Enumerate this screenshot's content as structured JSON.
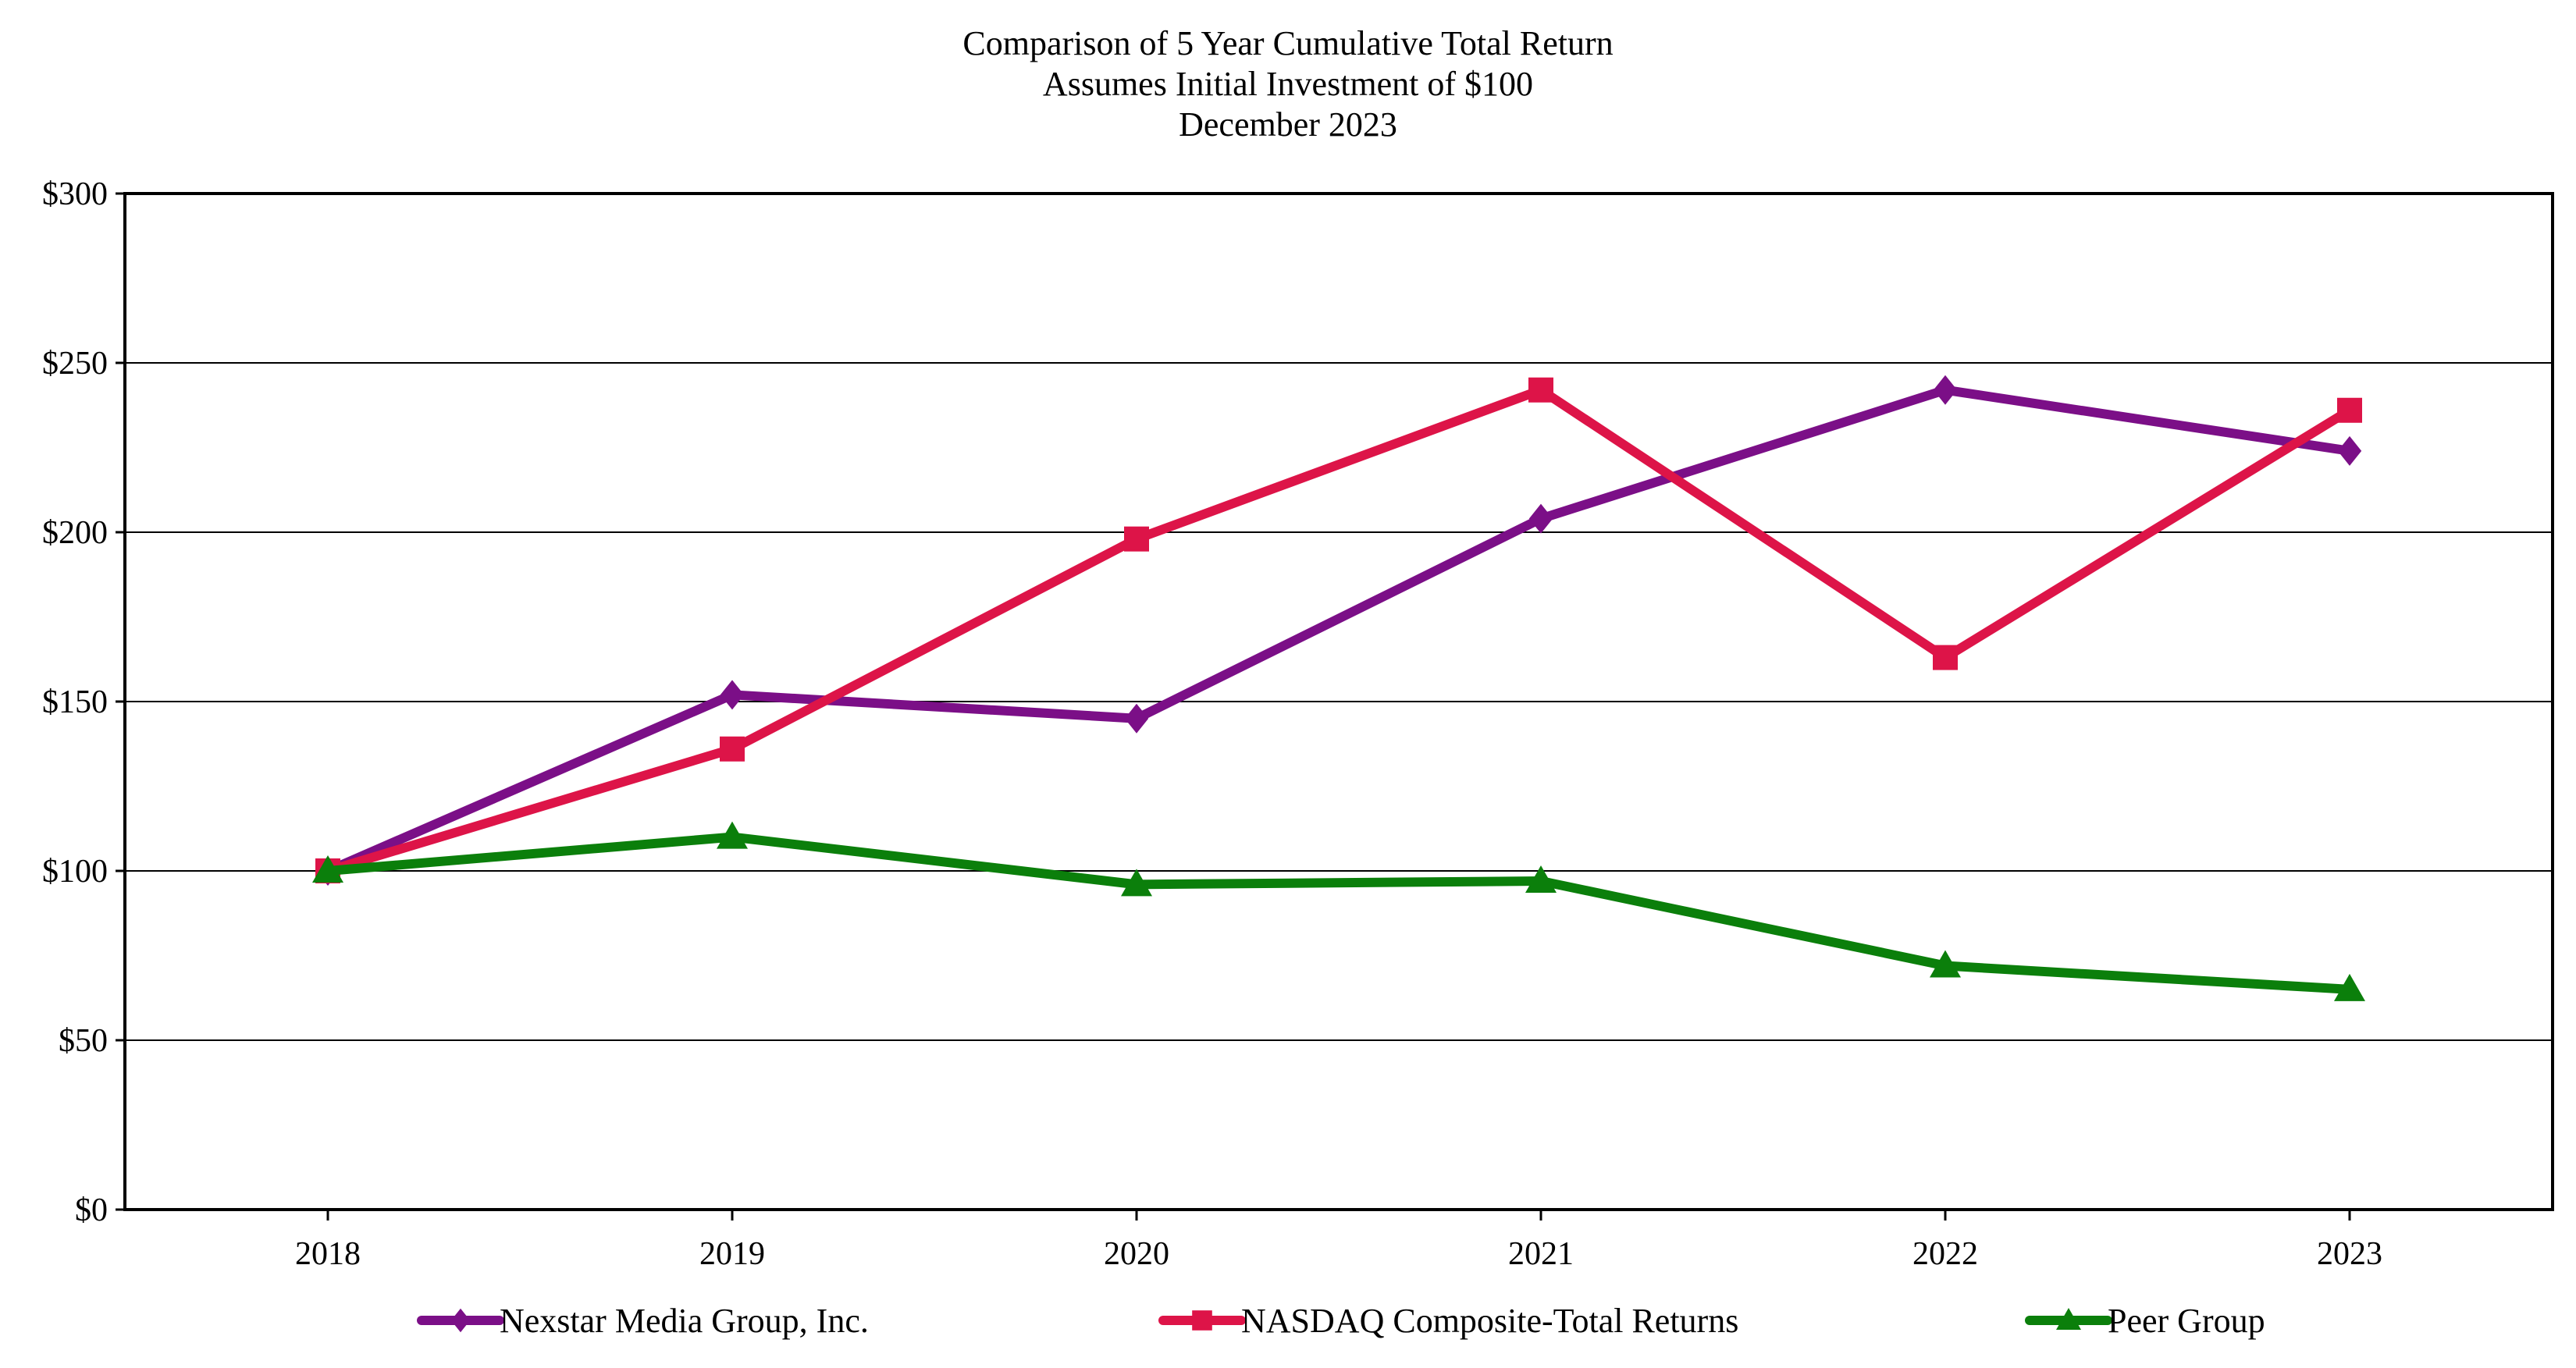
{
  "chart_data": {
    "type": "line",
    "title": "Comparison of 5 Year Cumulative Total Return",
    "subtitle": "Assumes Initial Investment of $100",
    "subtitle2": "December 2023",
    "x": [
      "2018",
      "2019",
      "2020",
      "2021",
      "2022",
      "2023"
    ],
    "y_ticks": [
      "$0",
      "$50",
      "$100",
      "$150",
      "$200",
      "$250",
      "$300"
    ],
    "ylim": [
      0,
      300
    ],
    "grid": true,
    "legend_position": "bottom",
    "series": [
      {
        "name": "Nexstar Media Group, Inc.",
        "values": [
          100,
          152,
          145,
          204,
          242,
          224
        ],
        "color": "#7b0f87",
        "marker": "diamond"
      },
      {
        "name": "NASDAQ Composite-Total Returns",
        "values": [
          100,
          136,
          198,
          242,
          163,
          236
        ],
        "color": "#dd1448",
        "marker": "square"
      },
      {
        "name": "Peer Group",
        "values": [
          100,
          110,
          96,
          97,
          72,
          65
        ],
        "color": "#0b7f0b",
        "marker": "triangle"
      }
    ]
  }
}
